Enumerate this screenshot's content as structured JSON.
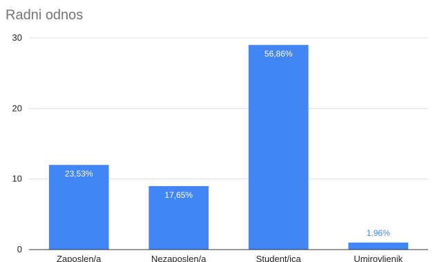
{
  "chart_data": {
    "type": "bar",
    "title": "Radni odnos",
    "categories": [
      "Zaposlen/a",
      "Nezaposlen/a",
      "Student/ica",
      "Umirovljenik"
    ],
    "values": [
      12,
      9,
      29,
      1
    ],
    "data_labels": [
      "23,53%",
      "17,65%",
      "56,86%",
      "1,96%"
    ],
    "ylim": [
      0,
      30
    ],
    "yticks": [
      0,
      10,
      20,
      30
    ],
    "xlabel": "",
    "ylabel": "",
    "grid": true,
    "legend": "none",
    "colors": {
      "bar": "#4285F4",
      "label_inside": "#ffffff",
      "label_outside": "#4285F4"
    }
  }
}
